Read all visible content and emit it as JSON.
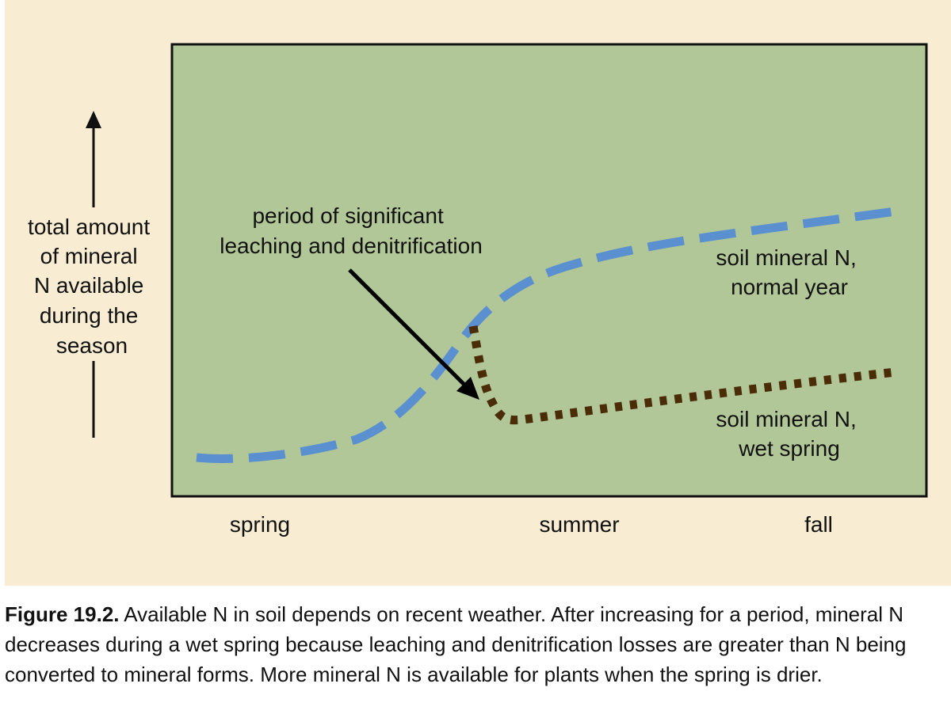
{
  "colors": {
    "panel_bg": "#f8ecd2",
    "plot_bg": "#b2c797",
    "normal_year_line": "#5a8fd0",
    "wet_spring_line": "#4a2c08",
    "arrow": "#000000"
  },
  "diagram": {
    "y_axis_label": [
      "total amount",
      "of mineral",
      "N available",
      "during the",
      "season"
    ],
    "x_labels": [
      "spring",
      "summer",
      "fall"
    ],
    "annotation": [
      "period of significant",
      "leaching and denitrification"
    ],
    "label_normal": [
      "soil mineral N,",
      "normal year"
    ],
    "label_wet": [
      "soil mineral N,",
      "wet spring"
    ]
  },
  "caption": {
    "figure_label": "Figure 19.2.",
    "text": "Available N in soil depends on recent weather. After increasing for a period, mineral N decreases during a wet spring because leaching and denitrification losses are greater than N being converted to mineral forms. More mineral N is available for plants when the spring is drier."
  }
}
